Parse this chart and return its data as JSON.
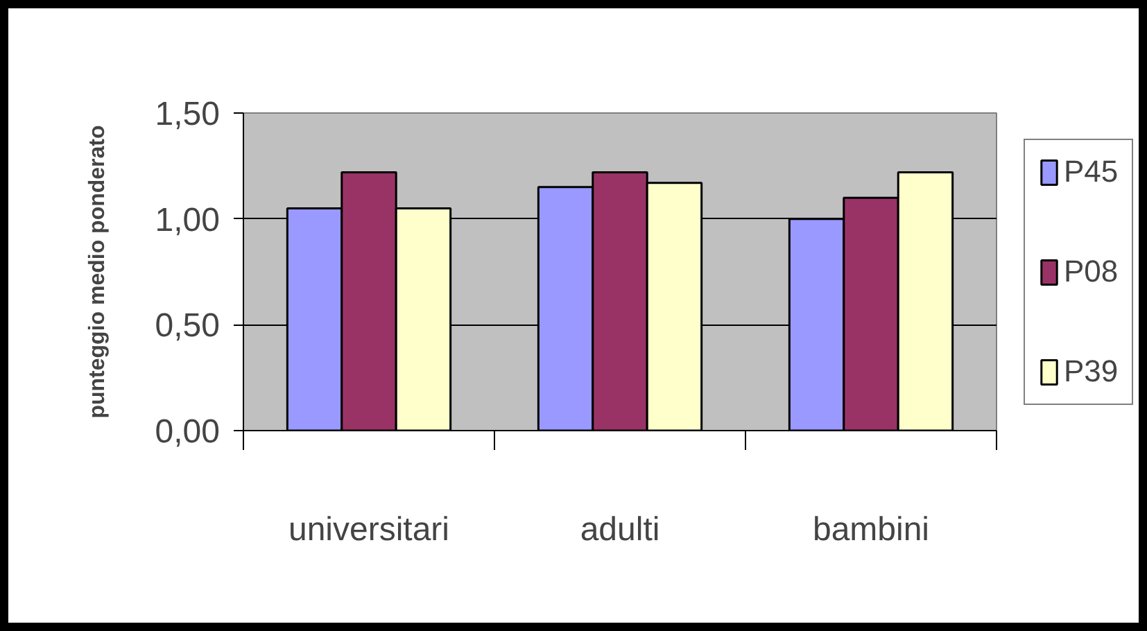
{
  "chart_data": {
    "type": "bar",
    "ylabel": "punteggio medio ponderato",
    "categories": [
      "universitari",
      "adulti",
      "bambini"
    ],
    "series": [
      {
        "name": "P45",
        "color": "#9999ff",
        "values": [
          1.05,
          1.15,
          1.0
        ]
      },
      {
        "name": "P08",
        "color": "#993366",
        "values": [
          1.22,
          1.22,
          1.1
        ]
      },
      {
        "name": "P39",
        "color": "#ffffcc",
        "values": [
          1.05,
          1.17,
          1.22
        ]
      }
    ],
    "ylim": [
      0,
      1.5
    ],
    "yticks": [
      {
        "value": 0,
        "label": "0,00"
      },
      {
        "value": 0.5,
        "label": "0,50"
      },
      {
        "value": 1,
        "label": "1,00"
      },
      {
        "value": 1.5,
        "label": "1,50"
      }
    ],
    "grid": "y",
    "legend": "right"
  }
}
